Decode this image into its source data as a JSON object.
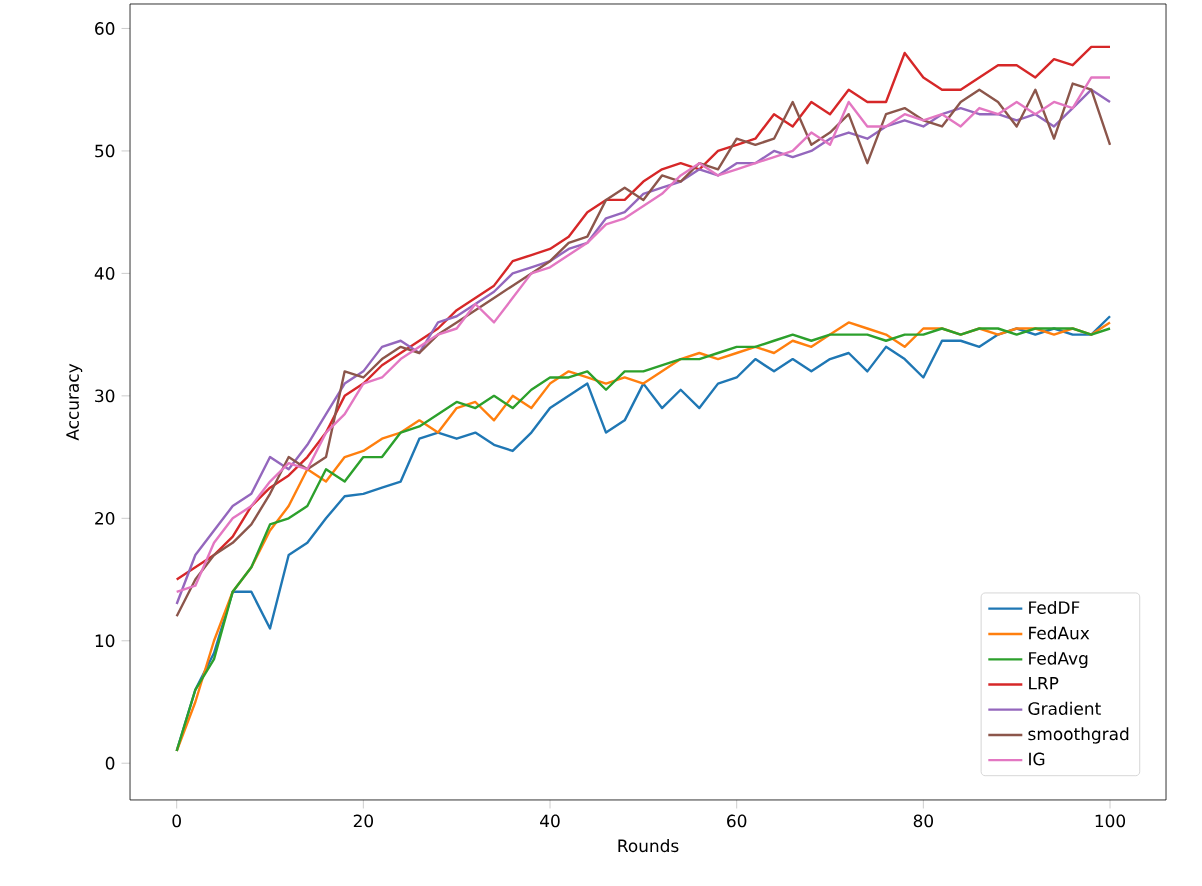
{
  "chart_data": {
    "type": "line",
    "xlabel": "Rounds",
    "ylabel": "Accuracy",
    "x": [
      0,
      2,
      4,
      6,
      8,
      10,
      12,
      14,
      16,
      18,
      20,
      22,
      24,
      26,
      28,
      30,
      32,
      34,
      36,
      38,
      40,
      42,
      44,
      46,
      48,
      50,
      52,
      54,
      56,
      58,
      60,
      62,
      64,
      66,
      68,
      70,
      72,
      74,
      76,
      78,
      80,
      82,
      84,
      86,
      88,
      90,
      92,
      94,
      96,
      98,
      100
    ],
    "series": [
      {
        "name": "FedDF",
        "color": "#1f77b4",
        "values": [
          1,
          6,
          9,
          14,
          14,
          11,
          17,
          18,
          20,
          21.8,
          22,
          22.5,
          23,
          26.5,
          27,
          26.5,
          27,
          26,
          25.5,
          27,
          29,
          30,
          31,
          27,
          28,
          31,
          29,
          30.5,
          29,
          31,
          31.5,
          33,
          32,
          33,
          32,
          33,
          33.5,
          32,
          34,
          33,
          31.5,
          34.5,
          34.5,
          34,
          35,
          35.5,
          35,
          35.5,
          35,
          35,
          36.5
        ]
      },
      {
        "name": "FedAux",
        "color": "#ff7f0e",
        "values": [
          1,
          5,
          10,
          14,
          16,
          19,
          21,
          24,
          23,
          25,
          25.5,
          26.5,
          27,
          28,
          27,
          29,
          29.5,
          28,
          30,
          29,
          31,
          32,
          31.5,
          31,
          31.5,
          31,
          32,
          33,
          33.5,
          33,
          33.5,
          34,
          33.5,
          34.5,
          34,
          35,
          36,
          35.5,
          35,
          34,
          35.5,
          35.5,
          35,
          35.5,
          35,
          35.5,
          35.5,
          35,
          35.5,
          35,
          36
        ]
      },
      {
        "name": "FedAvg",
        "color": "#2ca02c",
        "values": [
          1,
          6,
          8.5,
          14,
          16,
          19.5,
          20,
          21,
          24,
          23,
          25,
          25,
          27,
          27.5,
          28.5,
          29.5,
          29,
          30,
          29,
          30.5,
          31.5,
          31.5,
          32,
          30.5,
          32,
          32,
          32.5,
          33,
          33,
          33.5,
          34,
          34,
          34.5,
          35,
          34.5,
          35,
          35,
          35,
          34.5,
          35,
          35,
          35.5,
          35,
          35.5,
          35.5,
          35,
          35.5,
          35.5,
          35.5,
          35,
          35.5
        ]
      },
      {
        "name": "LRP",
        "color": "#d62728",
        "values": [
          15,
          16,
          17,
          18.5,
          21,
          22.5,
          23.5,
          25,
          27,
          30,
          31,
          32.5,
          33.5,
          34.5,
          35.5,
          37,
          38,
          39,
          41,
          41.5,
          42,
          43,
          45,
          46,
          46,
          47.5,
          48.5,
          49,
          48.5,
          50,
          50.5,
          51,
          53,
          52,
          54,
          53,
          55,
          54,
          54,
          58,
          56,
          55,
          55,
          56,
          57,
          57,
          56,
          57.5,
          57,
          58.5,
          58.5
        ]
      },
      {
        "name": "Gradient",
        "color": "#9467bd",
        "values": [
          13,
          17,
          19,
          21,
          22,
          25,
          24,
          26,
          28.5,
          31,
          32,
          34,
          34.5,
          33.5,
          36,
          36.5,
          37.5,
          38.5,
          40,
          40.5,
          41,
          42,
          42.5,
          44.5,
          45,
          46.5,
          47,
          47.5,
          48.5,
          48,
          49,
          49,
          50,
          49.5,
          50,
          51,
          51.5,
          51,
          52,
          52.5,
          52,
          53,
          53.5,
          53,
          53,
          52.5,
          53,
          52,
          53.5,
          55,
          54
        ]
      },
      {
        "name": "smoothgrad",
        "color": "#8c564b",
        "values": [
          12,
          15,
          17,
          18,
          19.5,
          22,
          25,
          24,
          25,
          32,
          31.5,
          33,
          34,
          33.5,
          35,
          36,
          37,
          38,
          39,
          40,
          41,
          42.5,
          43,
          46,
          47,
          46,
          48,
          47.5,
          49,
          48.5,
          51,
          50.5,
          51,
          54,
          50.5,
          51.5,
          53,
          49,
          53,
          53.5,
          52.5,
          52,
          54,
          55,
          54,
          52,
          55,
          51,
          55.5,
          55,
          50.5
        ]
      },
      {
        "name": "IG",
        "color": "#e377c2",
        "values": [
          14,
          14.5,
          18,
          20,
          21,
          23,
          24.5,
          24,
          27,
          28.5,
          31,
          31.5,
          33,
          34,
          35,
          35.5,
          37.5,
          36,
          38,
          40,
          40.5,
          41.5,
          42.5,
          44,
          44.5,
          45.5,
          46.5,
          48,
          49,
          48,
          48.5,
          49,
          49.5,
          50,
          51.5,
          50.5,
          54,
          52,
          52,
          53,
          52.5,
          53,
          52,
          53.5,
          53,
          54,
          53,
          54,
          53.5,
          56,
          56
        ]
      }
    ],
    "xlim": [
      -5,
      106
    ],
    "ylim": [
      -3,
      62
    ],
    "xticks": [
      0,
      20,
      40,
      60,
      80,
      100
    ],
    "yticks": [
      0,
      10,
      20,
      30,
      40,
      50,
      60
    ],
    "legend": "bottom right",
    "line_style": "solid"
  }
}
